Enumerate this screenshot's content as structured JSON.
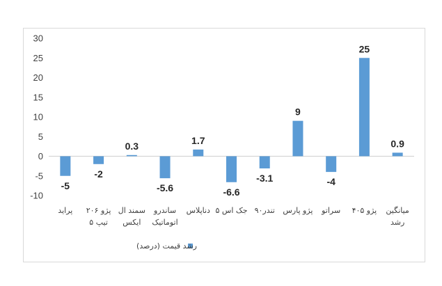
{
  "chart_data": {
    "type": "bar",
    "categories": [
      "پراید",
      "پژو ۲۰۶ تیپ ۵",
      "سمند ال ایکس",
      "ساندرو اتوماتیک",
      "دناپلاس",
      "جک اس ۵",
      "تندر۹۰",
      "پژو پارس",
      "سراتو",
      "پژو ۴۰۵",
      "میانگین رشد"
    ],
    "category_lines": [
      [
        "پراید"
      ],
      [
        "پژو ۲۰۶",
        "تیپ ۵"
      ],
      [
        "سمند ال",
        "ایکس"
      ],
      [
        "ساندرو",
        "اتوماتیک"
      ],
      [
        "دناپلاس"
      ],
      [
        "جک اس ۵"
      ],
      [
        "تندر۹۰"
      ],
      [
        "پژو پارس"
      ],
      [
        "سراتو"
      ],
      [
        "پژو ۴۰۵"
      ],
      [
        "میانگین",
        "رشد"
      ]
    ],
    "series": [
      {
        "name": "رشد قیمت (درصد)",
        "values": [
          -5,
          -2,
          0.3,
          -5.6,
          1.7,
          -6.6,
          -3.1,
          9,
          -4,
          25,
          0.9
        ],
        "color": "#5b9bd5"
      }
    ],
    "data_labels": [
      "-5",
      "-2",
      "0.3",
      "-5.6",
      "1.7",
      "-6.6",
      "-3.1",
      "9",
      "-4",
      "25",
      "0.9"
    ],
    "yticks": [
      "30",
      "25",
      "20",
      "15",
      "10",
      "5",
      "0",
      "-5",
      "-10"
    ],
    "ylim": [
      -10,
      30
    ],
    "grid": false,
    "legend_position": "bottom"
  }
}
